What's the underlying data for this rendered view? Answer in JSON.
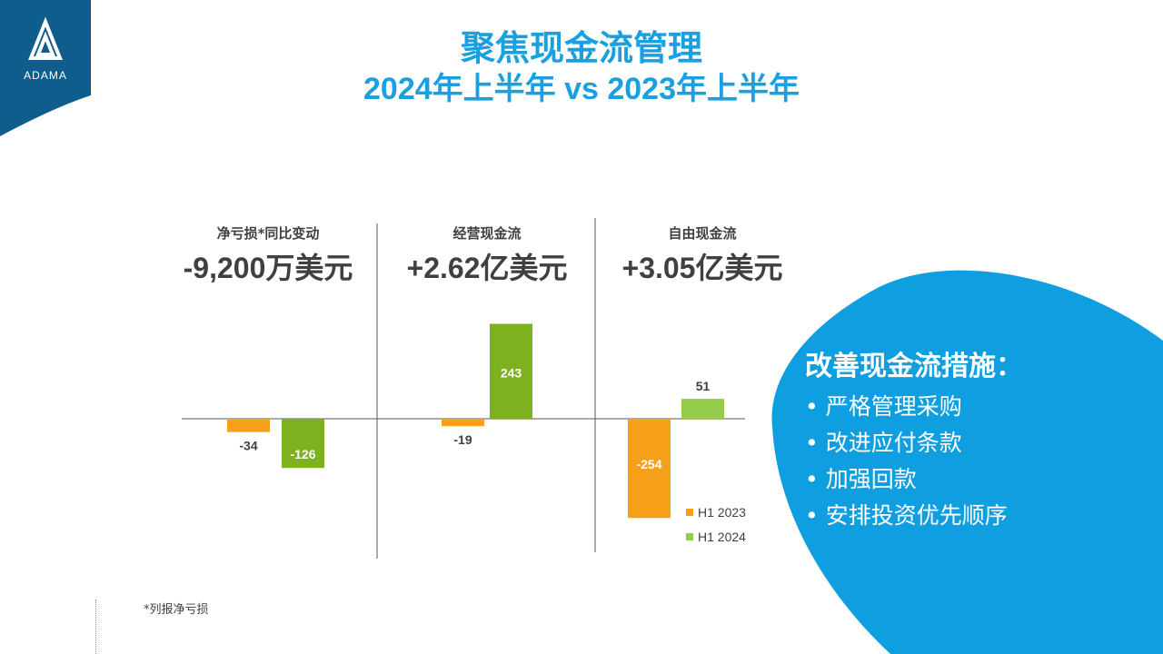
{
  "brand": {
    "logo_text": "ADAMA"
  },
  "title": {
    "line1": "聚焦现金流管理",
    "line2": "2024年上半年 vs 2023年上半年"
  },
  "panels": [
    {
      "label": "净亏损*同比变动",
      "value": "-9,200万美元"
    },
    {
      "label": "经营现金流",
      "value": "+2.62亿美元"
    },
    {
      "label": "自由现金流",
      "value": "+3.05亿美元"
    }
  ],
  "chart_data": {
    "type": "bar",
    "categories": [
      "净亏损*同比变动",
      "经营现金流",
      "自由现金流"
    ],
    "series": [
      {
        "name": "H1 2023",
        "color": "#f6a01a",
        "values": [
          -34,
          -19,
          -254
        ]
      },
      {
        "name": "H1 2024",
        "color": "#7db11f",
        "values": [
          -126,
          243,
          51
        ]
      }
    ],
    "legend": {
      "placement": "bottom-right",
      "entries": [
        "H1 2023",
        "H1 2024"
      ]
    },
    "grid": false
  },
  "measures": {
    "heading": "改善现金流措施：",
    "items": [
      "严格管理采购",
      "改进应付条款",
      "加强回款",
      "安排投资优先顺序"
    ]
  },
  "footnote": "*列报净亏损",
  "colors": {
    "accent_blue": "#1aa0e0",
    "bar_2023": "#f6a01a",
    "bar_2024": "#7db11f",
    "bar_2024_light": "#92cc4a",
    "logo_blue": "#0f5d8c"
  }
}
